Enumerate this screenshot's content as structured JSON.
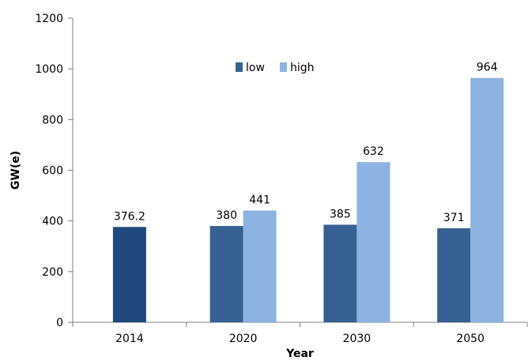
{
  "chart_data": {
    "type": "bar",
    "title": "",
    "xlabel": "Year",
    "ylabel": "GW(e)",
    "ylim": [
      0,
      1200
    ],
    "yticks": [
      0,
      200,
      400,
      600,
      800,
      1000,
      1200
    ],
    "categories": [
      "2014",
      "2020",
      "2030",
      "2050"
    ],
    "series": [
      {
        "name": "2014",
        "values": [
          376.2,
          null,
          null,
          null
        ],
        "labels": [
          "376.2",
          "",
          "",
          ""
        ],
        "color": "#1F497D"
      },
      {
        "name": "low",
        "values": [
          null,
          380,
          385,
          371
        ],
        "labels": [
          "",
          "380",
          "385",
          "371"
        ],
        "color": "#376092"
      },
      {
        "name": "high",
        "values": [
          null,
          441,
          632,
          964
        ],
        "labels": [
          "",
          "441",
          "632",
          "964"
        ],
        "color": "#8DB3E2"
      }
    ],
    "legend": {
      "position": "top-center",
      "items": [
        {
          "label": "low",
          "color": "#376092"
        },
        {
          "label": "high",
          "color": "#8DB3E2"
        }
      ]
    },
    "grid": false
  }
}
